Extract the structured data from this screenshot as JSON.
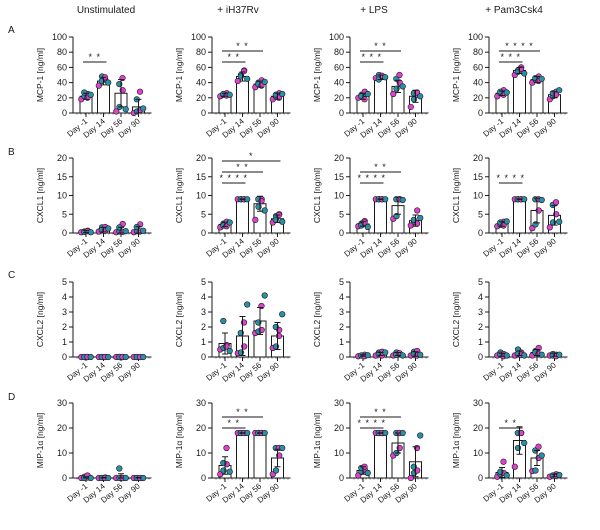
{
  "colors": {
    "pink": "#e040d0",
    "teal": "#2a8fa8",
    "outline": "#1a1a1a",
    "bar": "#ffffff"
  },
  "chart_data": {
    "type": "bar",
    "description": "Grid of bar charts with individual data points (mean ± SD), 4 cytokines × 4 stimulation conditions",
    "columns": [
      "Unstimulated",
      "+ iH37Rv",
      "+ LPS",
      "+ Pam3Csk4"
    ],
    "categories": [
      "Day -1",
      "Day 14",
      "Day 56",
      "Day 90"
    ],
    "rows": [
      {
        "label": "A",
        "ylabel": "MCP-1 [ng/ml]",
        "ylim": [
          0,
          100
        ],
        "yticks": [
          0,
          20,
          40,
          60,
          80,
          100
        ],
        "panels": [
          {
            "means": [
              22,
              42,
              26,
              8
            ],
            "sd": [
              4,
              5,
              18,
              10
            ],
            "points": [
              [
                18,
                22,
                25,
                27,
                20,
                24
              ],
              [
                36,
                48,
                44,
                42,
                47,
                40
              ],
              [
                2,
                8,
                30,
                38,
                46,
                5
              ],
              [
                0,
                2,
                4,
                18,
                28,
                6
              ]
            ],
            "sig": [
              {
                "from": 0,
                "to": 1,
                "label": "* *",
                "level": 0
              }
            ]
          },
          {
            "means": [
              24,
              48,
              38,
              22
            ],
            "sd": [
              2,
              6,
              4,
              4
            ],
            "points": [
              [
                22,
                24,
                26,
                25,
                23,
                24
              ],
              [
                42,
                50,
                56,
                48,
                55,
                45
              ],
              [
                34,
                40,
                43,
                38,
                36,
                41
              ],
              [
                18,
                22,
                26,
                24,
                20,
                25
              ]
            ],
            "sig": [
              {
                "from": 0,
                "to": 1,
                "label": "* *",
                "level": 0
              },
              {
                "from": 0,
                "to": 2,
                "label": "* *",
                "level": 1
              }
            ]
          },
          {
            "means": [
              22,
              47,
              35,
              22
            ],
            "sd": [
              4,
              3,
              8,
              8
            ],
            "points": [
              [
                20,
                24,
                28,
                22,
                18,
                25
              ],
              [
                46,
                50,
                48,
                44,
                49,
                47
              ],
              [
                25,
                32,
                40,
                45,
                50,
                35
              ],
              [
                8,
                18,
                24,
                26,
                27,
                22
              ]
            ],
            "sig": [
              {
                "from": 0,
                "to": 1,
                "label": "* * *",
                "level": 0
              },
              {
                "from": 0,
                "to": 2,
                "label": "* *",
                "level": 1
              }
            ]
          },
          {
            "means": [
              26,
              56,
              44,
              24
            ],
            "sd": [
              3,
              4,
              4,
              4
            ],
            "points": [
              [
                22,
                26,
                30,
                28,
                24,
                27
              ],
              [
                50,
                56,
                60,
                54,
                58,
                52
              ],
              [
                40,
                44,
                48,
                46,
                42,
                45
              ],
              [
                18,
                22,
                28,
                26,
                24,
                30
              ]
            ],
            "sig": [
              {
                "from": 0,
                "to": 1,
                "label": "* * *",
                "level": 0
              },
              {
                "from": 0,
                "to": 2,
                "label": "* * * *",
                "level": 1
              }
            ]
          }
        ]
      },
      {
        "label": "B",
        "ylabel": "CXCL1 [ng/ml]",
        "ylim": [
          0,
          20
        ],
        "yticks": [
          0,
          5,
          10,
          15,
          20
        ],
        "panels": [
          {
            "means": [
              0.4,
              0.9,
              0.7,
              0.8
            ],
            "sd": [
              0.3,
              0.6,
              0.8,
              0.9
            ],
            "points": [
              [
                0.2,
                0.4,
                0.6,
                0.3,
                0.5,
                0.2
              ],
              [
                0.4,
                1.5,
                1.6,
                0.8,
                0.6,
                1.2
              ],
              [
                0.2,
                0.4,
                2.4,
                1.5,
                0.3,
                0.5
              ],
              [
                0.2,
                0.5,
                2.3,
                1.6,
                0.4,
                0.6
              ]
            ],
            "sig": []
          },
          {
            "means": [
              2.3,
              9.0,
              7.8,
              3.8
            ],
            "sd": [
              0.6,
              0.1,
              2.0,
              1.0
            ],
            "points": [
              [
                1.5,
                2.5,
                3.0,
                2.0,
                1.8,
                2.8
              ],
              [
                9,
                9,
                9,
                9,
                9,
                9
              ],
              [
                3.5,
                7,
                9,
                9,
                8.5,
                6
              ],
              [
                2.8,
                4.5,
                5,
                3.5,
                4.8,
                3
              ]
            ],
            "sig": [
              {
                "from": 0,
                "to": 1,
                "label": "* * * *",
                "level": 0
              },
              {
                "from": 0,
                "to": 2,
                "label": "* *",
                "level": 1
              },
              {
                "from": 0,
                "to": 3,
                "label": "*",
                "level": 2
              }
            ]
          },
          {
            "means": [
              2.4,
              9.0,
              7.3,
              3.3
            ],
            "sd": [
              0.6,
              0.1,
              2.3,
              1.5
            ],
            "points": [
              [
                1.8,
                2.5,
                3.2,
                2.0,
                2.8,
                1.6
              ],
              [
                9,
                9,
                9,
                9,
                9,
                9
              ],
              [
                3.8,
                4.5,
                9,
                9,
                9,
                8.8
              ],
              [
                2,
                3,
                6,
                3.5,
                2.5,
                4
              ]
            ],
            "sig": [
              {
                "from": 0,
                "to": 1,
                "label": "* * * *",
                "level": 0
              },
              {
                "from": 0,
                "to": 2,
                "label": "* *",
                "level": 1
              }
            ]
          },
          {
            "means": [
              2.4,
              9.0,
              6.0,
              4.7
            ],
            "sd": [
              0.6,
              0.1,
              3.3,
              2.6
            ],
            "points": [
              [
                1.8,
                2.2,
                3.0,
                2.8,
                2.0,
                3.1
              ],
              [
                9,
                9,
                9,
                9,
                9,
                9
              ],
              [
                1.3,
                2.3,
                6,
                9,
                9,
                8.8
              ],
              [
                1.5,
                2.8,
                5,
                7.5,
                8.2,
                3
              ]
            ],
            "sig": [
              {
                "from": 0,
                "to": 1,
                "label": "* * * *",
                "level": 0
              }
            ]
          }
        ]
      },
      {
        "label": "C",
        "ylabel": "CXCL2 [ng/ml]",
        "ylim": [
          0,
          5
        ],
        "yticks": [
          0,
          1,
          2,
          3,
          4,
          5
        ],
        "panels": [
          {
            "means": [
              0,
              0,
              0,
              0
            ],
            "sd": [
              0,
              0,
              0,
              0
            ],
            "points": [
              [
                0,
                0,
                0,
                0,
                0,
                0
              ],
              [
                0,
                0,
                0,
                0,
                0,
                0
              ],
              [
                0,
                0,
                0,
                0,
                0,
                0
              ],
              [
                0,
                0,
                0,
                0,
                0,
                0
              ]
            ],
            "sig": []
          },
          {
            "means": [
              0.9,
              1.4,
              2.4,
              1.4
            ],
            "sd": [
              0.7,
              1.3,
              0.9,
              0.9
            ],
            "points": [
              [
                0.5,
                0.6,
                0.8,
                2.4,
                0.7,
                0.4
              ],
              [
                0.25,
                0.3,
                0.7,
                1.6,
                2.3,
                3.5
              ],
              [
                1.6,
                1.7,
                1.8,
                2.3,
                3.4,
                4.1
              ],
              [
                0.6,
                0.7,
                1.8,
                2.0,
                1.4,
                2.85
              ]
            ],
            "sig": []
          },
          {
            "means": [
              0.1,
              0.2,
              0.2,
              0.2
            ],
            "sd": [
              0.05,
              0.1,
              0.1,
              0.15
            ],
            "points": [
              [
                0.05,
                0.1,
                0.15,
                0.1,
                0.05,
                0.12
              ],
              [
                0.1,
                0.3,
                0.35,
                0.2,
                0.1,
                0.3
              ],
              [
                0.1,
                0.3,
                0.2,
                0.15,
                0.25,
                0.1
              ],
              [
                0.1,
                0.35,
                0.4,
                0.2,
                0.1,
                0.15
              ]
            ],
            "sig": []
          },
          {
            "means": [
              0.15,
              0.25,
              0.3,
              0.15
            ],
            "sd": [
              0.1,
              0.15,
              0.2,
              0.1
            ],
            "points": [
              [
                0.1,
                0.3,
                0.2,
                0.15,
                0.05,
                0.1
              ],
              [
                0.1,
                0.5,
                0.3,
                0.2,
                0.15,
                0.1
              ],
              [
                0.1,
                0.4,
                0.6,
                0.3,
                0.2,
                0.15
              ],
              [
                0.1,
                0.2,
                0.15,
                0.1,
                0.05,
                0.15
              ]
            ],
            "sig": []
          }
        ]
      },
      {
        "label": "D",
        "ylabel": "MIP-1α [ng/ml]",
        "ylim": [
          0,
          30
        ],
        "yticks": [
          0,
          10,
          20,
          30
        ],
        "panels": [
          {
            "means": [
              0.2,
              0.1,
              0.5,
              0.1
            ],
            "sd": [
              0.3,
              0.1,
              1.2,
              0.1
            ],
            "points": [
              [
                0,
                0.5,
                0.2,
                0,
                1,
                0
              ],
              [
                0,
                0,
                0.2,
                0,
                0,
                0
              ],
              [
                0,
                0,
                0,
                3.8,
                0,
                0
              ],
              [
                0,
                0,
                0,
                0,
                0,
                0
              ]
            ],
            "sig": []
          },
          {
            "means": [
              5.0,
              18.0,
              18.0,
              8.0
            ],
            "sd": [
              3.5,
              0.1,
              0.1,
              3.5
            ],
            "points": [
              [
                1.5,
                3,
                5.5,
                6,
                12,
                2.5
              ],
              [
                18,
                18,
                18,
                18,
                18,
                18
              ],
              [
                18,
                18,
                18,
                18,
                18,
                18
              ],
              [
                1.5,
                3,
                9,
                12,
                12,
                12
              ]
            ],
            "sig": [
              {
                "from": 0,
                "to": 1,
                "label": "* *",
                "level": 0
              },
              {
                "from": 0,
                "to": 2,
                "label": "* *",
                "level": 1
              }
            ]
          },
          {
            "means": [
              3.0,
              18.0,
              14.0,
              6.5
            ],
            "sd": [
              1.5,
              0.1,
              4.0,
              6.0
            ],
            "points": [
              [
                1,
                2.5,
                3.5,
                4,
                4.5,
                2
              ],
              [
                18,
                18,
                18,
                18,
                18,
                18
              ],
              [
                9,
                10,
                12,
                18,
                18,
                18
              ],
              [
                0,
                2,
                3,
                4.5,
                12,
                17
              ]
            ],
            "sig": [
              {
                "from": 0,
                "to": 1,
                "label": "* * * *",
                "level": 0
              },
              {
                "from": 0,
                "to": 2,
                "label": "* *",
                "level": 1
              }
            ]
          },
          {
            "means": [
              2.2,
              15.0,
              8.0,
              1.0
            ],
            "sd": [
              2.0,
              5.5,
              3.0,
              0.5
            ],
            "points": [
              [
                0.5,
                1.5,
                2,
                2.5,
                6.5,
                1
              ],
              [
                4.5,
                12,
                18,
                18,
                18,
                14
              ],
              [
                2.8,
                3,
                8,
                11,
                12.5,
                9
              ],
              [
                0.5,
                1,
                1.5,
                1,
                0.8,
                1.2
              ]
            ],
            "sig": [
              {
                "from": 0,
                "to": 1,
                "label": "* *",
                "level": 0
              }
            ]
          }
        ]
      }
    ]
  }
}
